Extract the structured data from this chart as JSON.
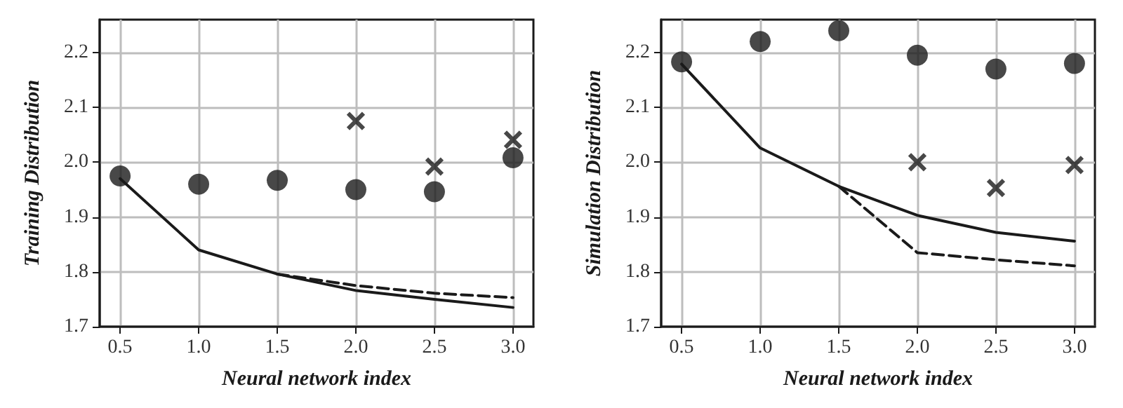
{
  "chart_data": [
    {
      "type": "scatter",
      "xlabel": "Neural network index",
      "ylabel": "Training Distribution",
      "x": [
        0.5,
        1.0,
        1.5,
        2.0,
        2.5,
        3.0
      ],
      "series": [
        {
          "marker": "circle",
          "color": "#1a1a1a",
          "values": [
            1.975,
            1.96,
            1.967,
            1.95,
            1.946,
            2.008
          ]
        },
        {
          "marker": "cross",
          "color": "#1a1a1a",
          "x": [
            2.0,
            2.5,
            3.0
          ],
          "values": [
            2.075,
            1.992,
            2.041
          ]
        },
        {
          "type": "line",
          "marker": "none",
          "line_style": "solid",
          "color": "#1a1a1a",
          "values": [
            1.97,
            1.84,
            1.796,
            1.766,
            1.75,
            1.735
          ]
        },
        {
          "type": "line",
          "marker": "none",
          "line_style": "dashed",
          "color": "#1a1a1a",
          "x": [
            1.5,
            2.0,
            2.5,
            3.0
          ],
          "values": [
            1.796,
            1.775,
            1.761,
            1.753
          ]
        }
      ],
      "xlim": [
        0.37,
        3.13
      ],
      "xticks": [
        {
          "value": 0.5,
          "label": "0.5"
        },
        {
          "value": 1.0,
          "label": "1.0"
        },
        {
          "value": 1.5,
          "label": "1.5"
        },
        {
          "value": 2.0,
          "label": "2.0"
        },
        {
          "value": 2.5,
          "label": "2.5"
        },
        {
          "value": 3.0,
          "label": "3.0"
        }
      ],
      "ylim": [
        1.7,
        2.26
      ],
      "yticks": [
        {
          "value": 1.7,
          "label": "1.7"
        },
        {
          "value": 1.8,
          "label": "1.8"
        },
        {
          "value": 1.9,
          "label": "1.9"
        },
        {
          "value": 2.0,
          "label": "2.0"
        },
        {
          "value": 2.1,
          "label": "2.1"
        },
        {
          "value": 2.2,
          "label": "2.2"
        }
      ],
      "grid": true
    },
    {
      "type": "scatter",
      "xlabel": "Neural network index",
      "ylabel": "Simulation Distribution",
      "x": [
        0.5,
        1.0,
        1.5,
        2.0,
        2.5,
        3.0
      ],
      "series": [
        {
          "marker": "circle",
          "color": "#1a1a1a",
          "values": [
            2.183,
            2.22,
            2.24,
            2.195,
            2.17,
            2.18
          ]
        },
        {
          "marker": "cross",
          "color": "#1a1a1a",
          "x": [
            2.0,
            2.5,
            3.0
          ],
          "values": [
            2.0,
            1.953,
            1.995
          ]
        },
        {
          "type": "line",
          "marker": "none",
          "line_style": "solid",
          "color": "#1a1a1a",
          "values": [
            2.179,
            2.026,
            1.956,
            1.903,
            1.872,
            1.856
          ]
        },
        {
          "type": "line",
          "marker": "none",
          "line_style": "dashed",
          "color": "#1a1a1a",
          "x": [
            1.5,
            2.0,
            2.5,
            3.0
          ],
          "values": [
            1.956,
            1.835,
            1.822,
            1.811
          ]
        }
      ],
      "xlim": [
        0.37,
        3.13
      ],
      "xticks": [
        {
          "value": 0.5,
          "label": "0.5"
        },
        {
          "value": 1.0,
          "label": "1.0"
        },
        {
          "value": 1.5,
          "label": "1.5"
        },
        {
          "value": 2.0,
          "label": "2.0"
        },
        {
          "value": 2.5,
          "label": "2.5"
        },
        {
          "value": 3.0,
          "label": "3.0"
        }
      ],
      "ylim": [
        1.7,
        2.26
      ],
      "yticks": [
        {
          "value": 1.7,
          "label": "1.7"
        },
        {
          "value": 1.8,
          "label": "1.8"
        },
        {
          "value": 1.9,
          "label": "1.9"
        },
        {
          "value": 2.0,
          "label": "2.0"
        },
        {
          "value": 2.1,
          "label": "2.1"
        },
        {
          "value": 2.2,
          "label": "2.2"
        }
      ],
      "grid": true
    }
  ]
}
